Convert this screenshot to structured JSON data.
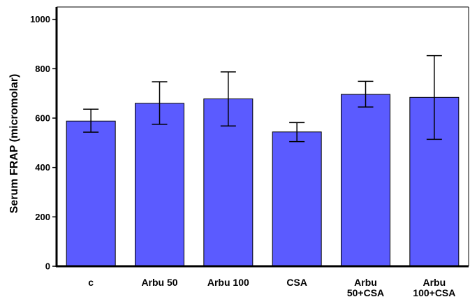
{
  "chart_data": {
    "type": "bar",
    "title": "",
    "xlabel": "",
    "ylabel": "Serum FRAP (micromolar)",
    "categories": [
      [
        "c"
      ],
      [
        "Arbu 50"
      ],
      [
        "Arbu 100"
      ],
      [
        "CSA"
      ],
      [
        "Arbu",
        "50+CSA"
      ],
      [
        "Arbu",
        "100+CSA"
      ]
    ],
    "values": [
      588,
      660,
      678,
      544,
      696,
      684
    ],
    "error_high": [
      636,
      747,
      787,
      582,
      749,
      853
    ],
    "error_low": [
      543,
      575,
      568,
      505,
      645,
      514
    ],
    "ylim": [
      0,
      1050
    ],
    "yticks": [
      0,
      200,
      400,
      600,
      800,
      1000
    ],
    "grid": false,
    "bar_color": "#5b5bff",
    "bar_edge_color": "#000000"
  }
}
